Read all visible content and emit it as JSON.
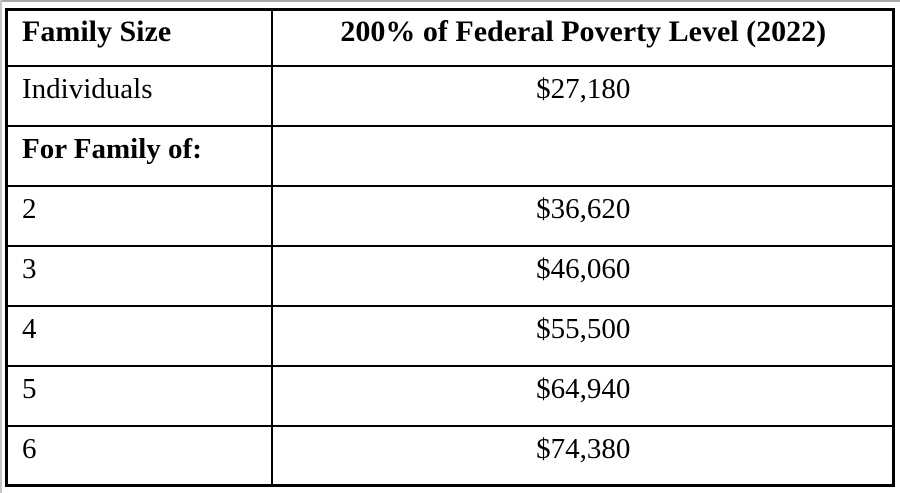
{
  "page": {
    "background": "#ffffff",
    "edge_color": "#a8a8a8"
  },
  "table": {
    "border_color": "#000000",
    "text_color": "#000000",
    "header": {
      "family_size": "Family Size",
      "poverty_level": "200% of Federal Poverty Level (2022)"
    },
    "rows": [
      {
        "label": "Individuals",
        "value": "$27,180",
        "bold": false
      },
      {
        "label": "For Family of:",
        "value": "",
        "bold": true
      },
      {
        "label": "2",
        "value": "$36,620",
        "bold": false
      },
      {
        "label": "3",
        "value": "$46,060",
        "bold": false
      },
      {
        "label": "4",
        "value": "$55,500",
        "bold": false
      },
      {
        "label": "5",
        "value": "$64,940",
        "bold": false
      },
      {
        "label": "6",
        "value": "$74,380",
        "bold": false
      }
    ]
  }
}
